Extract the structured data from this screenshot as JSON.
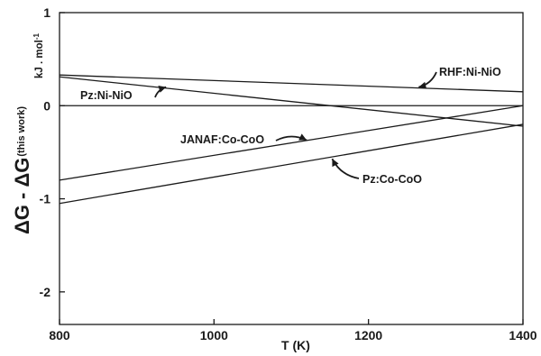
{
  "chart_data": {
    "type": "line",
    "xlabel": "T (K)",
    "ylabel_main": "ΔG - ΔG",
    "ylabel_sub": "(this work)",
    "yunit": "kJ . mol",
    "yunit_sup": "-1",
    "xlim": [
      800,
      1400
    ],
    "ylim": [
      -2.35,
      1
    ],
    "xticks": [
      800,
      1000,
      1200,
      1400
    ],
    "yticks": [
      1,
      0,
      -1,
      -2
    ],
    "grid": false,
    "line_color": "#1a1a1a",
    "series": [
      {
        "name": "RHF:Ni-NiO",
        "x": [
          800,
          1400
        ],
        "y": [
          0.33,
          0.15
        ]
      },
      {
        "name": "Pz:Ni-NiO",
        "x": [
          800,
          1400
        ],
        "y": [
          0.31,
          -0.22
        ]
      },
      {
        "name": "JANAF:Co-CoO",
        "x": [
          800,
          1400
        ],
        "y": [
          -0.8,
          0.0
        ]
      },
      {
        "name": "Pz:Co-CoO",
        "x": [
          800,
          1400
        ],
        "y": [
          -1.05,
          -0.2
        ]
      },
      {
        "name": "",
        "x": [
          800,
          1400
        ],
        "y": [
          0,
          0
        ]
      }
    ],
    "annotations": [
      {
        "text": "RHF:Ni-NiO",
        "arrow_to": [
          1265,
          0.2
        ]
      },
      {
        "text": "Pz:Ni-NiO",
        "arrow_to": [
          938,
          0.2
        ]
      },
      {
        "text": "JANAF:Co-CoO",
        "arrow_to": [
          1120,
          -0.37
        ]
      },
      {
        "text": "Pz:Co-CoO",
        "arrow_to": [
          1153,
          -0.57
        ]
      }
    ]
  }
}
